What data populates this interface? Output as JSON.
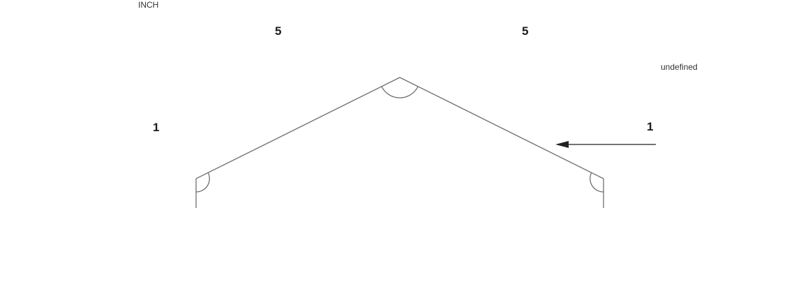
{
  "units": "INCH",
  "dimensions": {
    "left_top": "5",
    "right_top": "5",
    "left_side": "1",
    "right_side": "1"
  },
  "annotation": "undefined",
  "colors": {
    "line": "#6e6e6e",
    "text": "#1a1a1a",
    "arrow": "#222222"
  }
}
